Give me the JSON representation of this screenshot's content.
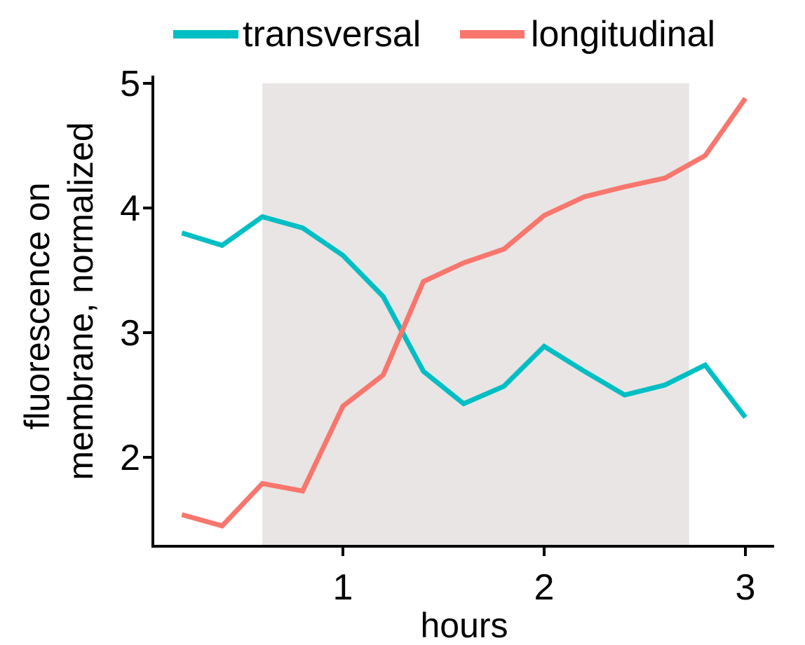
{
  "chart_data": {
    "type": "line",
    "title": "",
    "xlabel": "hours",
    "ylabel": [
      "fluorescence on",
      "membrane, normalized"
    ],
    "xlim": [
      0.1,
      3.15
    ],
    "ylim": [
      1.3,
      5
    ],
    "x_ticks": [
      1,
      2,
      3
    ],
    "y_ticks": [
      2,
      3,
      4,
      5
    ],
    "grid": false,
    "legend_position": "top",
    "shaded_region": {
      "x_start": 0.6,
      "x_end": 2.72,
      "color": "#e8e5e4"
    },
    "series": [
      {
        "name": "transversal",
        "color": "#00bfc4",
        "x": [
          0.2,
          0.4,
          0.6,
          0.8,
          1.0,
          1.2,
          1.4,
          1.6,
          1.8,
          2.0,
          2.2,
          2.4,
          2.6,
          2.8,
          3.0
        ],
        "y": [
          3.8,
          3.7,
          3.93,
          3.84,
          3.62,
          3.29,
          2.69,
          2.43,
          2.57,
          2.89,
          2.69,
          2.5,
          2.58,
          2.74,
          2.32
        ]
      },
      {
        "name": "longitudinal",
        "color": "#f8766d",
        "x": [
          0.2,
          0.4,
          0.6,
          0.8,
          1.0,
          1.2,
          1.4,
          1.6,
          1.8,
          2.0,
          2.2,
          2.4,
          2.6,
          2.8,
          3.0
        ],
        "y": [
          1.54,
          1.45,
          1.79,
          1.73,
          2.41,
          2.66,
          3.41,
          3.56,
          3.67,
          3.94,
          4.09,
          4.17,
          4.24,
          4.42,
          4.88
        ]
      }
    ]
  }
}
